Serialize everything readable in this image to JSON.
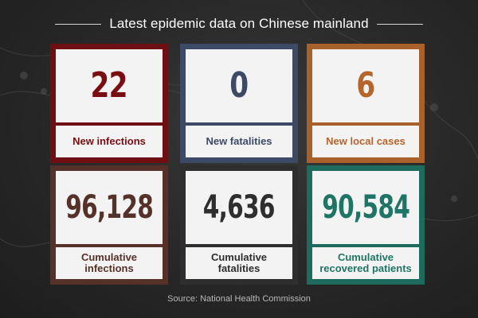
{
  "title": "Latest epidemic data on Chinese mainland",
  "cards": [
    {
      "value": "22",
      "label": "New infections",
      "color": "#6e0f13"
    },
    {
      "value": "0",
      "label": "New fatalities",
      "color": "#3c4a65"
    },
    {
      "value": "6",
      "label": "New local cases",
      "color": "#a8612b"
    },
    {
      "value": "96,128",
      "label": "Cumulative infections",
      "color": "#563129"
    },
    {
      "value": "4,636",
      "label": "Cumulative fatalities",
      "color": "#2e2e2e"
    },
    {
      "value": "90,584",
      "label": "Cumulative recovered patients",
      "color": "#1d6b5d"
    }
  ],
  "source": "Source: National Health Commission"
}
